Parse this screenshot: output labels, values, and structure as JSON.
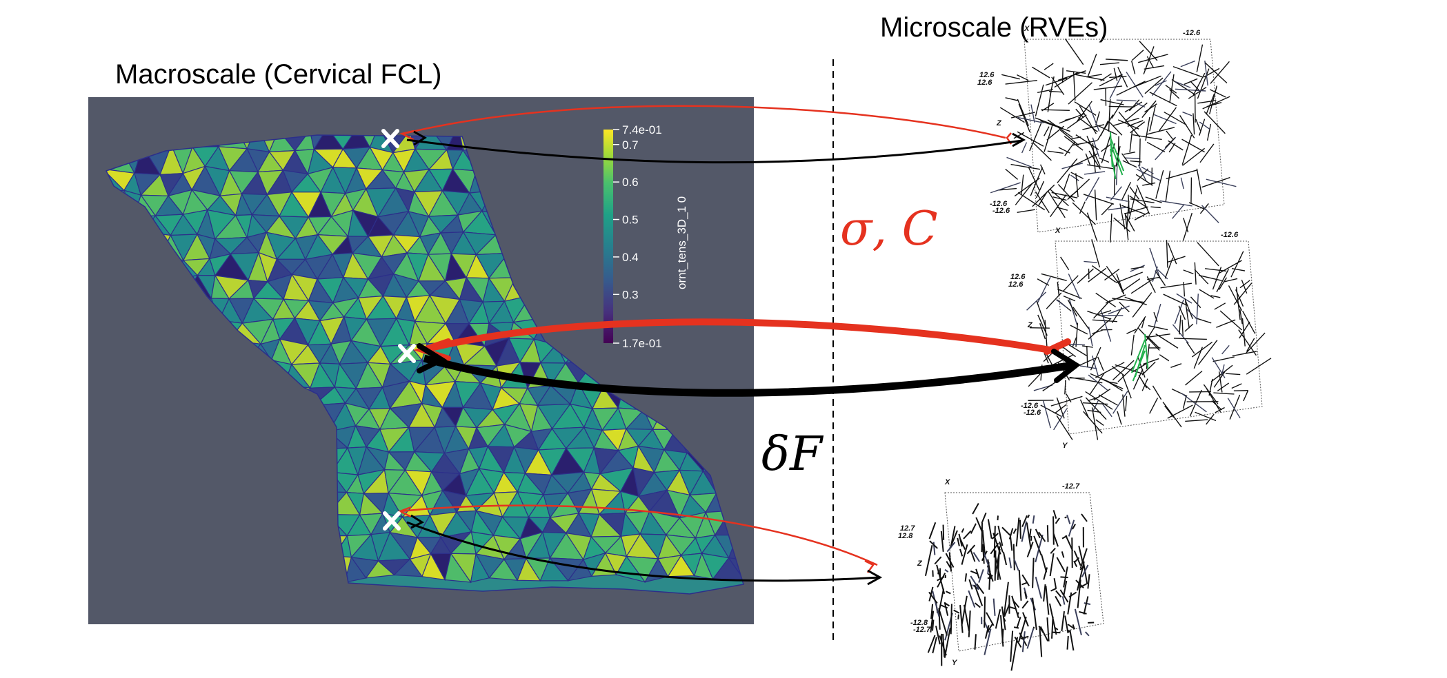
{
  "macroscale": {
    "title": "Macroscale (Cervical FCL)"
  },
  "microscale": {
    "title": "Microscale (RVEs)"
  },
  "colorbar": {
    "label": "ornt_tens_3D_1 0",
    "min": 0.17,
    "max": 0.74,
    "ticks": [
      "7.4e-01",
      "0.7",
      "0.6",
      "0.5",
      "0.4",
      "0.3",
      "1.7e-01"
    ],
    "tick_values": [
      0.74,
      0.7,
      0.6,
      0.5,
      0.4,
      0.3,
      0.17
    ],
    "colormap": "viridis"
  },
  "annotations": {
    "stress": "σ, C",
    "deformation": "δF"
  },
  "rves": [
    {
      "axis_x": "X",
      "axis_y": "",
      "axis_z": "Z",
      "num_top": "-12.6",
      "num_left_a": "12.6",
      "num_left_b": "12.6",
      "num_bot_a": "-12.6",
      "num_bot_b": "-12.6"
    },
    {
      "axis_x": "X",
      "axis_y": "Y",
      "axis_z": "Z",
      "num_top": "-12.6",
      "num_left_a": "12.6",
      "num_left_b": "12.6",
      "num_bot_a": "-12.6",
      "num_bot_b": "-12.6"
    },
    {
      "axis_x": "X",
      "axis_y": "Y",
      "axis_z": "Z",
      "num_top": "-12.7",
      "num_left_a": "12.7",
      "num_left_b": "12.8",
      "num_bot_a": "-12.8",
      "num_bot_b": "-12.7"
    }
  ],
  "colors": {
    "mesh_bg": "#535868",
    "red_arrow": "#e5321f",
    "black_arrow": "#000000",
    "marker": "#ffffff",
    "mesh_edge": "#2c2f8a"
  }
}
